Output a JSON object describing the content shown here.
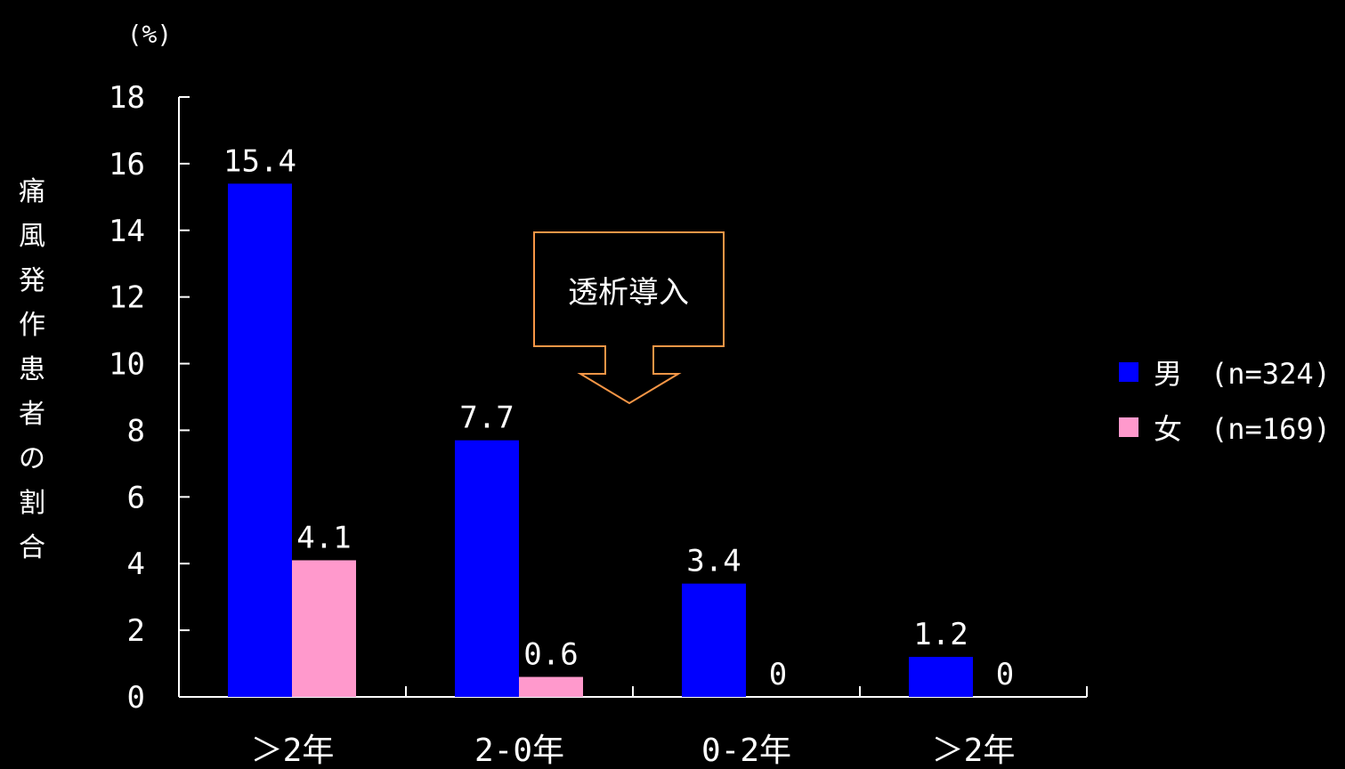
{
  "chart_data": {
    "type": "bar",
    "categories": [
      "＞2年",
      "2-0年",
      "0-2年",
      "＞2年"
    ],
    "series": [
      {
        "name": "男　(n=324)",
        "values": [
          15.4,
          7.7,
          3.4,
          1.2
        ],
        "color": "#0000ff"
      },
      {
        "name": "女　(n=169)",
        "values": [
          4.1,
          0.6,
          0,
          0
        ],
        "color": "#ff99cc"
      }
    ],
    "data_labels": [
      [
        "15.4",
        "7.7",
        "3.4",
        "1.2"
      ],
      [
        "4.1",
        "0.6",
        "0",
        "0"
      ]
    ],
    "ylabel": "痛風発作患者の割合",
    "y_unit": "(%)",
    "ylim": [
      0,
      18
    ],
    "yticks": [
      0,
      2,
      4,
      6,
      8,
      10,
      12,
      14,
      16,
      18
    ],
    "legend_position": "right",
    "grid": false,
    "annotation": {
      "text": "透析導入",
      "shape": "down-arrow-callout",
      "color": "#f79646"
    }
  }
}
